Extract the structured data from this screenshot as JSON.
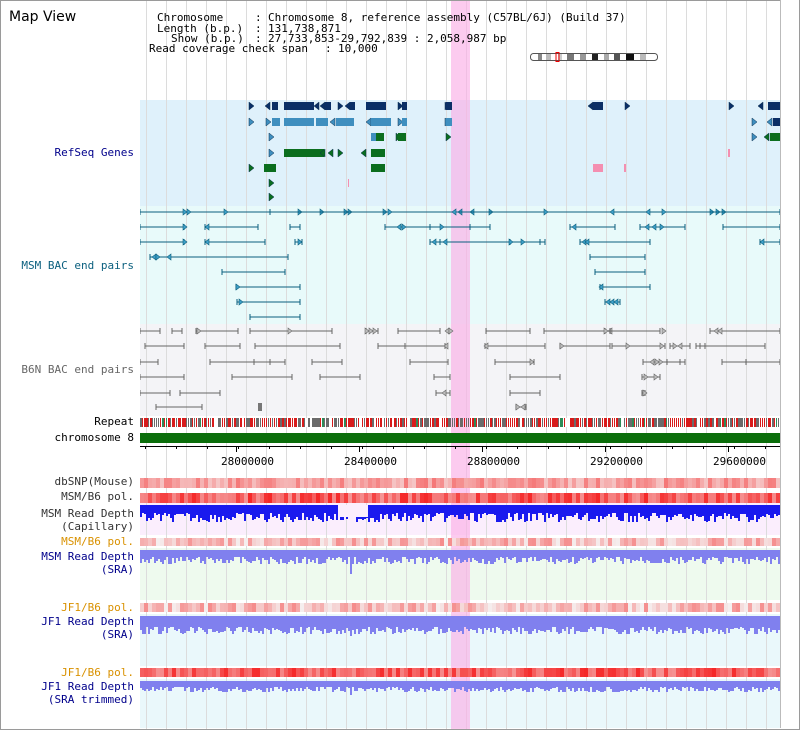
{
  "window_title": "Map View",
  "info": {
    "chromosome_label": "Chromosome",
    "chromosome_value": "Chromosome 8, reference assembly (C57BL/6J) (Build 37)",
    "length_label": "Length (b.p.)",
    "length_value": "131,738,871",
    "show_label": "Show (b.p.)",
    "show_value": "27,733,853-29,792,839 : 2,058,987 bp",
    "coverage_label": "Read coverage check span",
    "coverage_value": "10,000"
  },
  "tracks": {
    "refseq": "RefSeq Genes",
    "msm_bac": "MSM BAC end pairs",
    "b6n_bac": "B6N BAC end pairs",
    "repeat": "Repeat",
    "chromosome": "chromosome 8",
    "dbsnp": "dbSNP(Mouse)",
    "msm_b6_pol_1": "MSM/B6 pol.",
    "msm_read_depth_cap_1": "MSM Read Depth",
    "msm_read_depth_cap_2": "(Capillary)",
    "msm_b6_pol_2": "MSM/B6 pol.",
    "msm_read_depth_sra_1": "MSM Read Depth",
    "msm_read_depth_sra_2": "(SRA)",
    "jf1_b6_pol_1": "JF1/B6 pol.",
    "jf1_read_depth_sra_1": "JF1 Read Depth",
    "jf1_read_depth_sra_2": "(SRA)",
    "jf1_b6_pol_2": "JF1/B6 pol.",
    "jf1_read_depth_trim_1": "JF1 Read Depth",
    "jf1_read_depth_trim_2": "(SRA trimmed)"
  },
  "axis": {
    "ticks": [
      "28000000",
      "28400000",
      "28800000",
      "29200000",
      "29600000"
    ]
  },
  "colors": {
    "refseq_bg": "#dff1fb",
    "msm_bac_bg": "#e8fafa",
    "b6n_bac_bg": "#f4f4f7",
    "gene_dark": "#0b2f66",
    "gene_mid": "#3f8fbf",
    "gene_green": "#0b6e1e",
    "msm_bac_line": "#0a5f7e",
    "b6n_bac_line": "#666666",
    "chromosome_bar": "#0b6e0b",
    "label_blue": "#00008b",
    "label_orange": "#d99100",
    "label_teal": "#2a5a78",
    "depth_blue": "#1a1aee",
    "depth_light": "#8080ee",
    "highlight": "#f9b0e6"
  }
}
